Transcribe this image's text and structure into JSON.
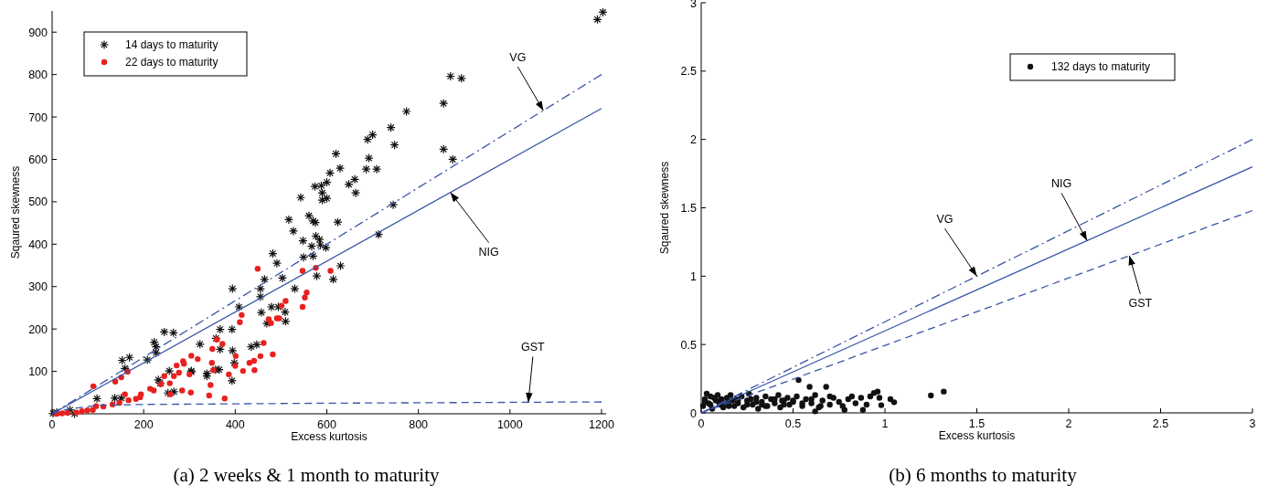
{
  "chart_data": [
    {
      "type": "scatter",
      "title": "(a) 2 weeks & 1 month to maturity",
      "xlabel": "Excess kurtosis",
      "ylabel": "Sqaured skewness",
      "xlim": [
        0,
        1210
      ],
      "ylim": [
        0,
        950
      ],
      "xticks": [
        0,
        200,
        400,
        600,
        800,
        1000,
        1200
      ],
      "yticks": [
        100,
        200,
        300,
        400,
        500,
        600,
        700,
        800,
        900
      ],
      "grid": false,
      "legend": "top left",
      "series": [
        {
          "name": "14 days to maturity",
          "color": "#111111",
          "marker": "cross",
          "x": [
            1191,
            1203,
            870,
            894,
            855,
            774,
            740,
            700,
            689,
            748,
            620,
            692,
            855,
            875,
            629,
            607,
            686,
            709,
            661,
            600,
            648,
            574,
            588,
            590,
            663,
            590,
            600,
            543,
            517,
            527,
            561,
            570,
            575,
            624,
            548,
            576,
            584,
            567,
            586,
            598,
            745,
            713,
            549,
            570,
            482,
            491,
            630,
            578,
            614,
            464,
            503,
            530,
            394,
            455,
            455,
            408,
            479,
            494,
            509,
            510,
            457,
            469,
            367,
            393,
            245,
            265,
            223,
            227,
            227,
            323,
            358,
            367,
            394,
            398,
            435,
            447,
            153,
            169,
            159,
            208,
            256,
            304,
            304,
            232,
            236,
            338,
            338,
            357,
            365,
            393,
            266,
            253,
            137,
            151,
            98,
            39,
            49,
            2,
            10
          ],
          "values": [
            930,
            947,
            796,
            791,
            732,
            713,
            675,
            658,
            647,
            634,
            613,
            603,
            624,
            600,
            579,
            568,
            577,
            577,
            553,
            546,
            541,
            536,
            538,
            521,
            521,
            504,
            508,
            510,
            458,
            431,
            467,
            455,
            451,
            452,
            408,
            419,
            411,
            395,
            398,
            392,
            493,
            423,
            369,
            372,
            378,
            355,
            349,
            325,
            317,
            317,
            320,
            295,
            295,
            295,
            276,
            252,
            252,
            252,
            240,
            218,
            239,
            213,
            199,
            199,
            193,
            191,
            169,
            158,
            144,
            164,
            178,
            152,
            149,
            120,
            158,
            163,
            126,
            133,
            107,
            127,
            101,
            101,
            99,
            80,
            72,
            95,
            89,
            104,
            104,
            78,
            52,
            49,
            37,
            37,
            36,
            9,
            0,
            1,
            3
          ]
        },
        {
          "name": "22 days to maturity",
          "color": "#e8201e",
          "marker": "circle",
          "x": [
            449,
            547,
            608,
            576,
            556,
            552,
            547,
            510,
            501,
            491,
            478,
            473,
            496,
            414,
            410,
            462,
            455,
            441,
            431,
            417,
            442,
            482,
            400,
            386,
            401,
            350,
            360,
            372,
            349,
            352,
            346,
            343,
            377,
            318,
            304,
            286,
            288,
            272,
            277,
            300,
            266,
            245,
            257,
            238,
            222,
            214,
            303,
            284,
            258,
            194,
            165,
            138,
            151,
            90,
            192,
            183,
            159,
            167,
            147,
            132,
            112,
            96,
            89,
            77,
            65,
            53,
            34,
            22,
            10
          ],
          "values": [
            342,
            337,
            337,
            344,
            286,
            274,
            252,
            266,
            255,
            225,
            214,
            223,
            225,
            233,
            216,
            167,
            136,
            125,
            120,
            101,
            103,
            140,
            113,
            93,
            136,
            153,
            175,
            165,
            120,
            103,
            68,
            43,
            36,
            129,
            137,
            124,
            118,
            114,
            97,
            93,
            89,
            89,
            72,
            70,
            55,
            59,
            50,
            55,
            46,
            46,
            99,
            76,
            86,
            65,
            39,
            35,
            46,
            32,
            26,
            22,
            17,
            18,
            9,
            8,
            6,
            3,
            2,
            1,
            0
          ]
        },
        {
          "type": "line",
          "color": "#3a55a8",
          "line_style": "dashdot",
          "x": [
            0,
            1200
          ],
          "values": [
            0,
            800
          ]
        },
        {
          "type": "line",
          "color": "#3a55a8",
          "line_style": "solid",
          "x": [
            0,
            1200
          ],
          "values": [
            0,
            720
          ]
        },
        {
          "type": "line",
          "color": "#3a55a8",
          "line_style": "dashed",
          "x": [
            0,
            30,
            100,
            200,
            600,
            1200
          ],
          "values": [
            0,
            10,
            20,
            22,
            25,
            28
          ]
        }
      ],
      "annotations": [
        {
          "text": "VG",
          "x": 1073,
          "y": 715
        },
        {
          "text": "NIG",
          "x": 870,
          "y": 522
        },
        {
          "text": "GST",
          "x": 1040,
          "y": 27
        }
      ]
    },
    {
      "type": "scatter",
      "title": "(b) 6 months to maturity",
      "xlabel": "Excess kurtosis",
      "ylabel": "Sqaured skewness",
      "xlim": [
        0,
        3
      ],
      "ylim": [
        0,
        3
      ],
      "xticks": [
        0,
        0.5,
        1,
        1.5,
        2,
        2.5,
        3
      ],
      "yticks": [
        0,
        0.5,
        1,
        1.5,
        2,
        2.5,
        3
      ],
      "grid": false,
      "legend": "top right",
      "series": [
        {
          "name": "132 days to maturity",
          "color": "#111111",
          "marker": "circle",
          "x": [
            1.25,
            1.32,
            1.05,
            1.03,
            0.98,
            0.96,
            0.94,
            0.97,
            0.92,
            0.88,
            0.87,
            0.82,
            0.78,
            0.68,
            0.59,
            0.53,
            0.62,
            0.01,
            0.02,
            0.03,
            0.04,
            0.05,
            0.06,
            0.08,
            0.09,
            0.1,
            0.11,
            0.12,
            0.14,
            0.15,
            0.16,
            0.18,
            0.19,
            0.2,
            0.22,
            0.23,
            0.25,
            0.26,
            0.28,
            0.3,
            0.31,
            0.33,
            0.35,
            0.36,
            0.38,
            0.4,
            0.42,
            0.43,
            0.45,
            0.47,
            0.48,
            0.5,
            0.52,
            0.55,
            0.57,
            0.6,
            0.62,
            0.64,
            0.66,
            0.7,
            0.72,
            0.75,
            0.77,
            0.8,
            0.84,
            0.9,
            0.05,
            0.1,
            0.15,
            0.2,
            0.25,
            0.3,
            0.35,
            0.4,
            0.45,
            0.5,
            0.55,
            0.6,
            0.65,
            0.7,
            0.02,
            0.07,
            0.13,
            0.17,
            0.27,
            0.33,
            0.44
          ],
          "values": [
            0.127,
            0.156,
            0.078,
            0.1,
            0.056,
            0.156,
            0.145,
            0.11,
            0.12,
            0.022,
            0.11,
            0.12,
            0.022,
            0.19,
            0.19,
            0.24,
            0.011,
            0.05,
            0.1,
            0.14,
            0.07,
            0.12,
            0.03,
            0.09,
            0.13,
            0.06,
            0.1,
            0.04,
            0.11,
            0.08,
            0.13,
            0.05,
            0.1,
            0.07,
            0.12,
            0.04,
            0.09,
            0.14,
            0.06,
            0.11,
            0.03,
            0.08,
            0.12,
            0.05,
            0.1,
            0.07,
            0.13,
            0.04,
            0.09,
            0.11,
            0.06,
            0.08,
            0.12,
            0.05,
            0.1,
            0.07,
            0.13,
            0.04,
            0.09,
            0.06,
            0.11,
            0.08,
            0.05,
            0.1,
            0.07,
            0.06,
            0.06,
            0.08,
            0.05,
            0.09,
            0.06,
            0.08,
            0.05,
            0.1,
            0.06,
            0.09,
            0.07,
            0.1,
            0.05,
            0.12,
            0.08,
            0.11,
            0.07,
            0.09,
            0.1,
            0.06,
            0.09
          ]
        },
        {
          "type": "line",
          "color": "#3a55a8",
          "line_style": "dashdot",
          "x": [
            0,
            3
          ],
          "values": [
            0,
            2
          ]
        },
        {
          "type": "line",
          "color": "#3a55a8",
          "line_style": "solid",
          "x": [
            0,
            3
          ],
          "values": [
            0,
            1.8
          ]
        },
        {
          "type": "line",
          "color": "#3a55a8",
          "line_style": "dashed",
          "x": [
            0,
            3
          ],
          "values": [
            0,
            1.48
          ]
        }
      ],
      "annotations": [
        {
          "text": "VG",
          "x": 1.5,
          "y": 1.0
        },
        {
          "text": "NIG",
          "x": 2.1,
          "y": 1.26
        },
        {
          "text": "GST",
          "x": 2.33,
          "y": 1.15
        }
      ]
    }
  ]
}
